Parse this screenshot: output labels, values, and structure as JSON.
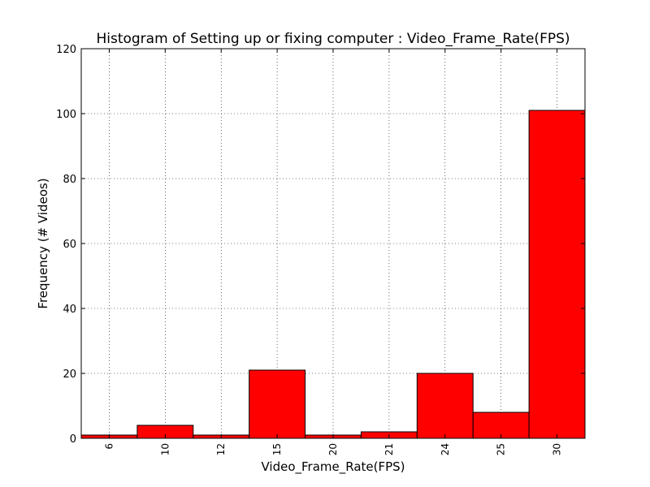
{
  "chart_data": {
    "type": "bar",
    "title": "Histogram of Setting up or fixing computer : Video_Frame_Rate(FPS)",
    "xlabel": "Video_Frame_Rate(FPS)",
    "ylabel": "Frequency (# Videos)",
    "categories": [
      "6",
      "10",
      "12",
      "15",
      "20",
      "21",
      "24",
      "25",
      "30"
    ],
    "values": [
      1,
      4,
      1,
      21,
      1,
      2,
      20,
      8,
      101
    ],
    "ylim": [
      0,
      120
    ],
    "yticks": [
      "0",
      "20",
      "40",
      "60",
      "80",
      "100",
      "120"
    ],
    "grid": true,
    "bar_color": "#ff0000",
    "edge_color": "#000000"
  }
}
